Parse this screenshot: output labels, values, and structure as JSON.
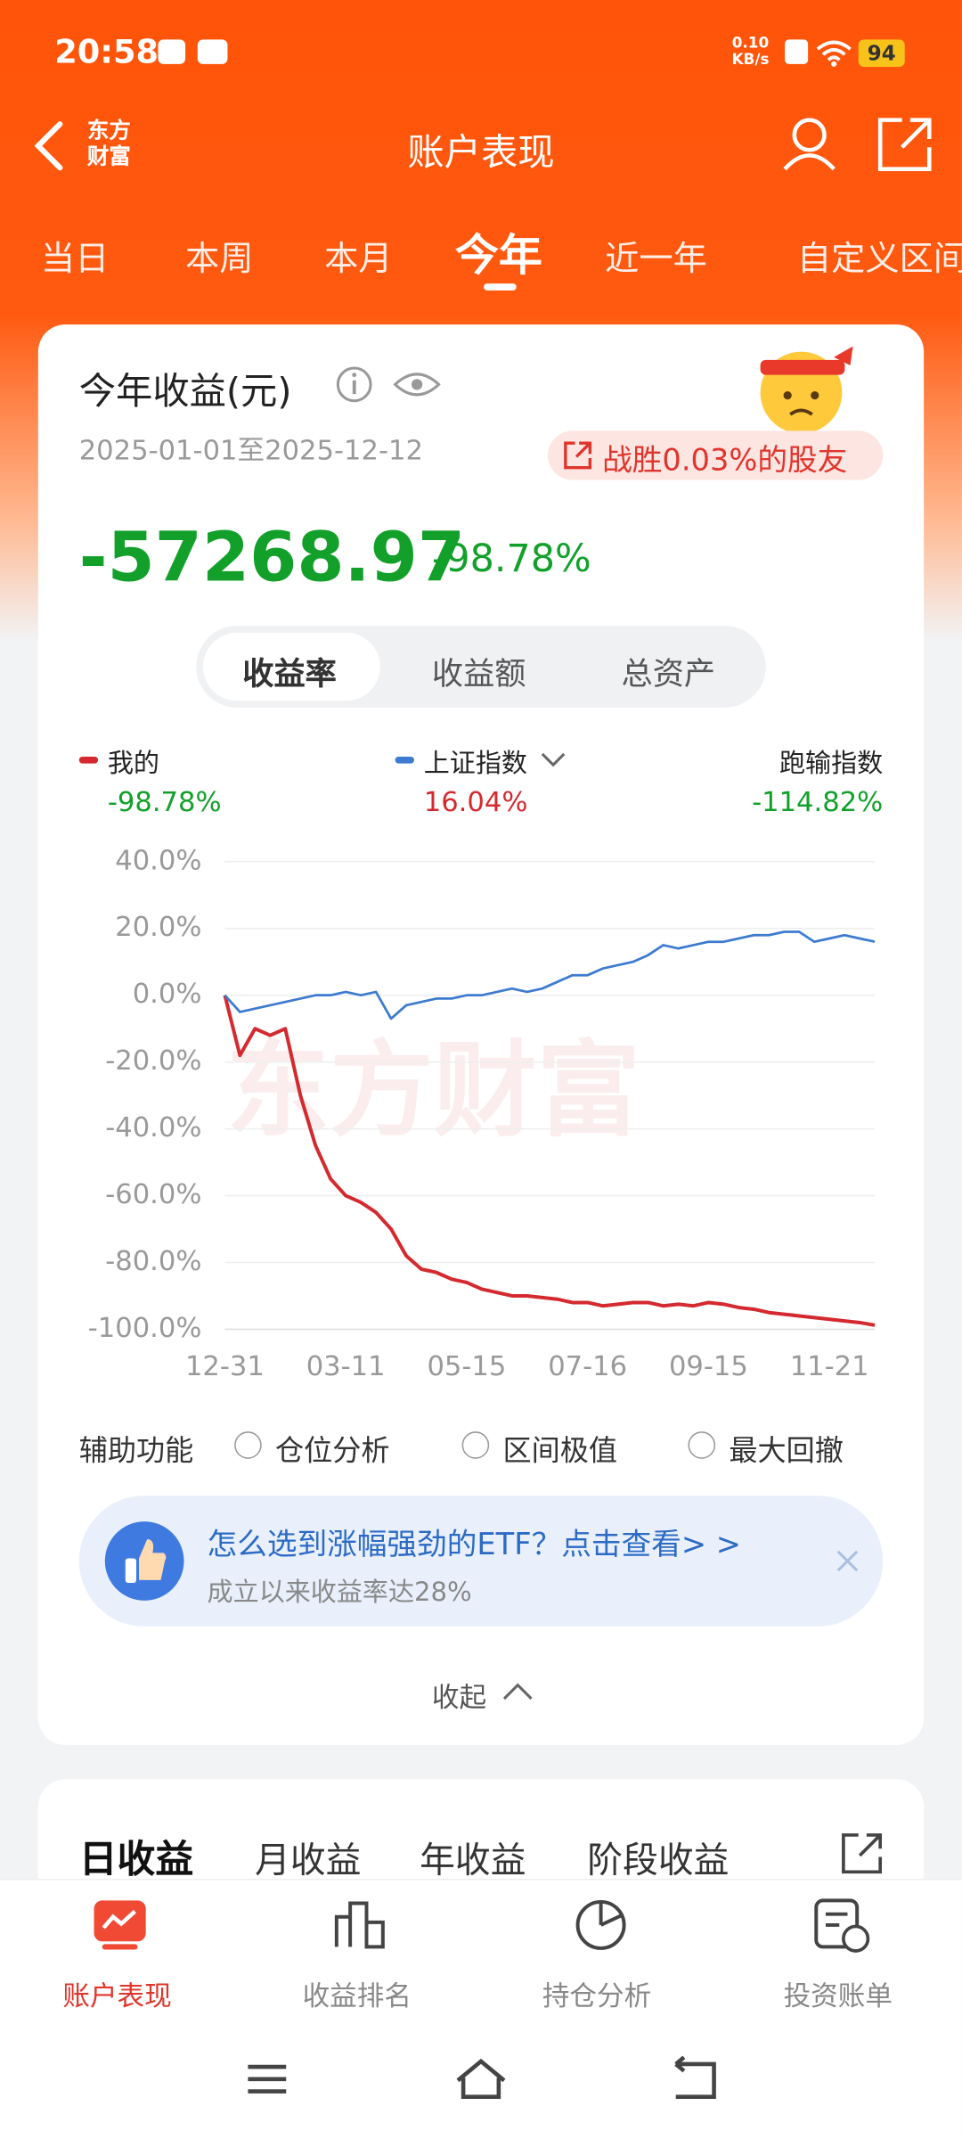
{
  "status_bar": {
    "time": "20:58",
    "speed": "0.10",
    "speed_unit": "KB/s",
    "battery": "94"
  },
  "header": {
    "logo_line1": "东方",
    "logo_line2": "财富",
    "title": "账户表现"
  },
  "period_tabs": [
    "当日",
    "本周",
    "本月",
    "今年",
    "近一年",
    "自定义区间"
  ],
  "card": {
    "title": "今年收益(元)",
    "date_range": "2025-01-01至2025-12-12",
    "badge": "战胜0.03%的股友",
    "amount": "-57268.97",
    "rate": "-98.78%",
    "segments": [
      "收益率",
      "收益额",
      "总资产"
    ]
  },
  "chart_data": {
    "type": "line",
    "watermark": "东方财富",
    "categories": [
      "12-31",
      null,
      null,
      null,
      null,
      null,
      null,
      null,
      "03-11",
      null,
      null,
      null,
      null,
      null,
      null,
      null,
      "05-15",
      null,
      null,
      null,
      null,
      null,
      null,
      null,
      "07-16",
      null,
      null,
      null,
      null,
      null,
      null,
      null,
      "09-15",
      null,
      null,
      null,
      null,
      null,
      null,
      null,
      "11-21",
      null,
      null,
      null
    ],
    "series": [
      {
        "name": "我的",
        "color": "#d42a2f",
        "summary": "-98.78%",
        "values": [
          0,
          -18,
          -10,
          -12,
          -10,
          -30,
          -45,
          -55,
          -60,
          -62,
          -65,
          -70,
          -78,
          -82,
          -83,
          -85,
          -86,
          -88,
          -89,
          -90,
          -90,
          -90.5,
          -91,
          -92,
          -92,
          -93,
          -92.5,
          -92,
          -92,
          -93,
          -92.5,
          -93,
          -92,
          -92.5,
          -93.5,
          -94,
          -95,
          -95.5,
          -96,
          -96.5,
          -97,
          -97.5,
          -98,
          -98.78
        ]
      },
      {
        "name": "上证指数",
        "color": "#3d7bd0",
        "summary": "16.04%",
        "values": [
          0,
          -5,
          -4,
          -3,
          -2,
          -1,
          0,
          0,
          1,
          0,
          1,
          -7,
          -3,
          -2,
          -1,
          -1,
          0,
          0,
          1,
          2,
          1,
          2,
          4,
          6,
          6,
          8,
          9,
          10,
          12,
          15,
          14,
          15,
          16,
          16,
          17,
          18,
          18,
          19,
          19,
          16,
          17,
          18,
          17,
          16.04
        ]
      }
    ],
    "comparison": {
      "name": "跑输指数",
      "summary": "-114.82%"
    },
    "ylim": [
      -100,
      40
    ],
    "yticks": [
      {
        "value": 40,
        "label": "40.0%"
      },
      {
        "value": 20,
        "label": "20.0%"
      },
      {
        "value": 0,
        "label": "0.0%"
      },
      {
        "value": -20,
        "label": "-20.0%"
      },
      {
        "value": -40,
        "label": "-40.0%"
      },
      {
        "value": -60,
        "label": "-60.0%"
      },
      {
        "value": -80,
        "label": "-80.0%"
      },
      {
        "value": -100,
        "label": "-100.0%"
      }
    ],
    "grid": true
  },
  "tools": {
    "label": "辅助功能",
    "options": [
      "仓位分析",
      "区间极值",
      "最大回撤"
    ]
  },
  "ad": {
    "title": "怎么选到涨幅强劲的ETF？点击查看> >",
    "subtitle": "成立以来收益率达28%"
  },
  "collapse": "收起",
  "profit_tabs": [
    "日收益",
    "月收益",
    "年收益",
    "阶段收益"
  ],
  "bottom_nav": [
    "账户表现",
    "收益排名",
    "持仓分析",
    "投资账单"
  ]
}
